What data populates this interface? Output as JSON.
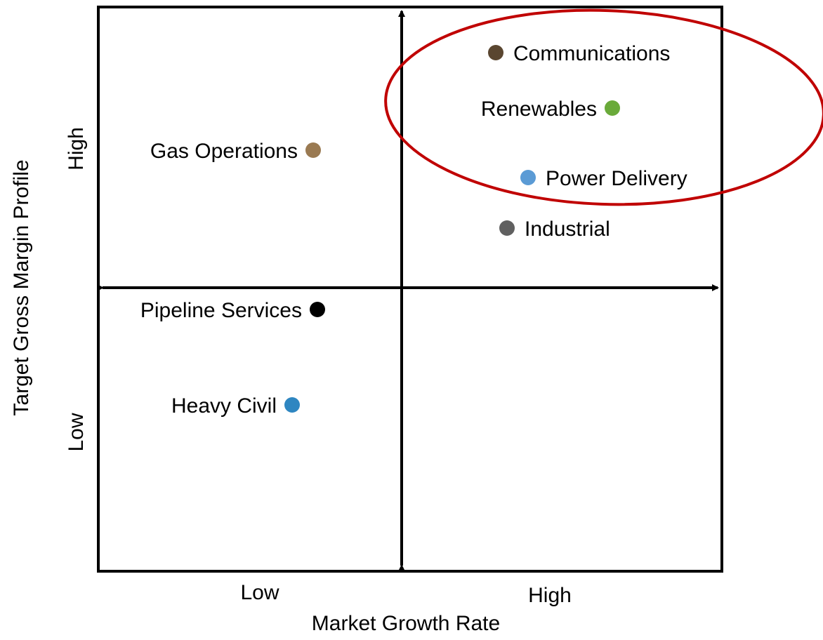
{
  "diagram": {
    "x_axis": {
      "title": "Market Growth Rate",
      "low": "Low",
      "high": "High"
    },
    "y_axis": {
      "title": "Target Gross Margin Profile",
      "low": "Low",
      "high": "High"
    },
    "highlight_color": "#c00000",
    "nodes": [
      {
        "label": "Communications",
        "color": "#5a4630"
      },
      {
        "label": "Renewables",
        "color": "#6aaa3a"
      },
      {
        "label": "Gas Operations",
        "color": "#9a7a52"
      },
      {
        "label": "Power Delivery",
        "color": "#5b9bd5"
      },
      {
        "label": "Industrial",
        "color": "#606060"
      },
      {
        "label": "Pipeline Services",
        "color": "#000000"
      },
      {
        "label": "Heavy Civil",
        "color": "#2e86c1"
      }
    ]
  }
}
